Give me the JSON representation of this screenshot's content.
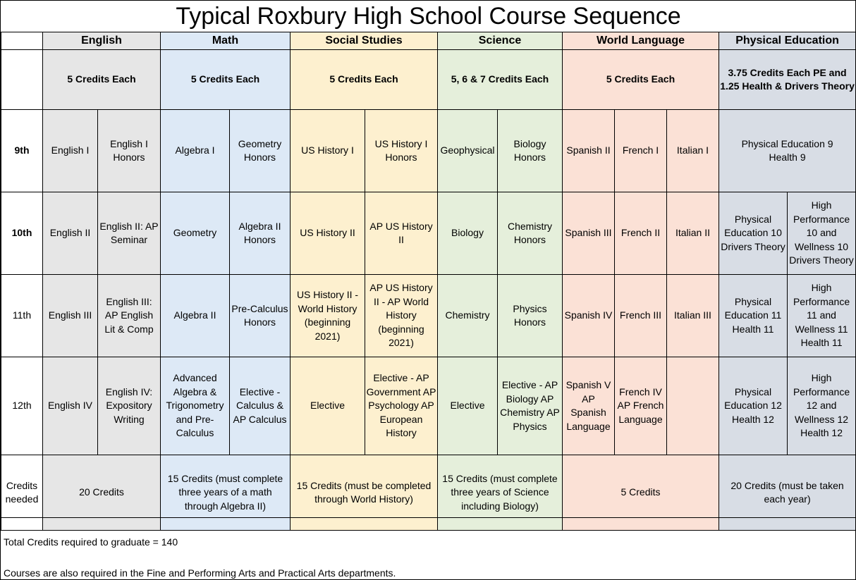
{
  "title": "Typical Roxbury High School Course Sequence",
  "departments": [
    {
      "name": "English",
      "credits_each": "5 Credits Each",
      "color": "#e6e6e6"
    },
    {
      "name": "Math",
      "credits_each": "5 Credits Each",
      "color": "#dde9f6"
    },
    {
      "name": "Social Studies",
      "credits_each": "5 Credits Each",
      "color": "#fdf0cf"
    },
    {
      "name": "Science",
      "credits_each": "5, 6 & 7 Credits Each",
      "color": "#e5efdb"
    },
    {
      "name": "World Language",
      "credits_each": "5 Credits Each",
      "color": "#fbe1d6"
    },
    {
      "name": "Physical Education",
      "credits_each": "3.75 Credits Each PE and 1.25 Health & Drivers Theory",
      "color": "#d8dde5"
    }
  ],
  "grades": [
    {
      "label": "9th",
      "courses": [
        "English I",
        "English I Honors",
        "Algebra I",
        "Geometry Honors",
        "US History I",
        "US History I Honors",
        "Geophysical",
        "Biology Honors",
        "Spanish II",
        "French I",
        "Italian I",
        "Physical Education 9\nHealth 9"
      ]
    },
    {
      "label": "10th",
      "courses": [
        "English II",
        "English II: AP Seminar",
        "Geometry",
        "Algebra II Honors",
        "US History II",
        "AP US History II",
        "Biology",
        "Chemistry Honors",
        "Spanish III",
        "French II",
        "Italian II",
        "Physical Education 10 Drivers Theory",
        "High Performance 10 and Wellness 10 Drivers Theory"
      ]
    },
    {
      "label": "11th",
      "courses": [
        "English III",
        "English III: AP English Lit & Comp",
        "Algebra II",
        "Pre-Calculus Honors",
        "US History II - World History (beginning 2021)",
        "AP US History II - AP World History (beginning 2021)",
        "Chemistry",
        "Physics Honors",
        "Spanish IV",
        "French III",
        "Italian III",
        "Physical Education 11 Health 11",
        "High Performance 11 and Wellness 11 Health 11"
      ]
    },
    {
      "label": "12th",
      "courses": [
        "English IV",
        "English IV: Expository Writing",
        "Advanced Algebra & Trigonometry and Pre-Calculus",
        "Elective - Calculus & AP Calculus",
        "Elective",
        "Elective - AP Government AP Psychology AP European History",
        "Elective",
        "Elective - AP Biology AP Chemistry AP Physics",
        "Spanish V AP Spanish Language",
        "French IV AP French Language",
        "",
        "Physical Education 12 Health 12",
        "High Performance 12 and Wellness 12 Health 12"
      ]
    }
  ],
  "credits_needed": {
    "label": "Credits needed",
    "values": [
      "20 Credits",
      "15 Credits (must complete three years of a math through Algebra II)",
      "15 Credits (must be completed through World History)",
      "15 Credits (must complete three years of Science including Biology)",
      "5 Credits",
      "20 Credits (must be taken each year)"
    ]
  },
  "footer": {
    "total": "Total Credits required to graduate = 140",
    "note": "Courses are also required in the Fine and Performing Arts and Practical Arts departments."
  }
}
